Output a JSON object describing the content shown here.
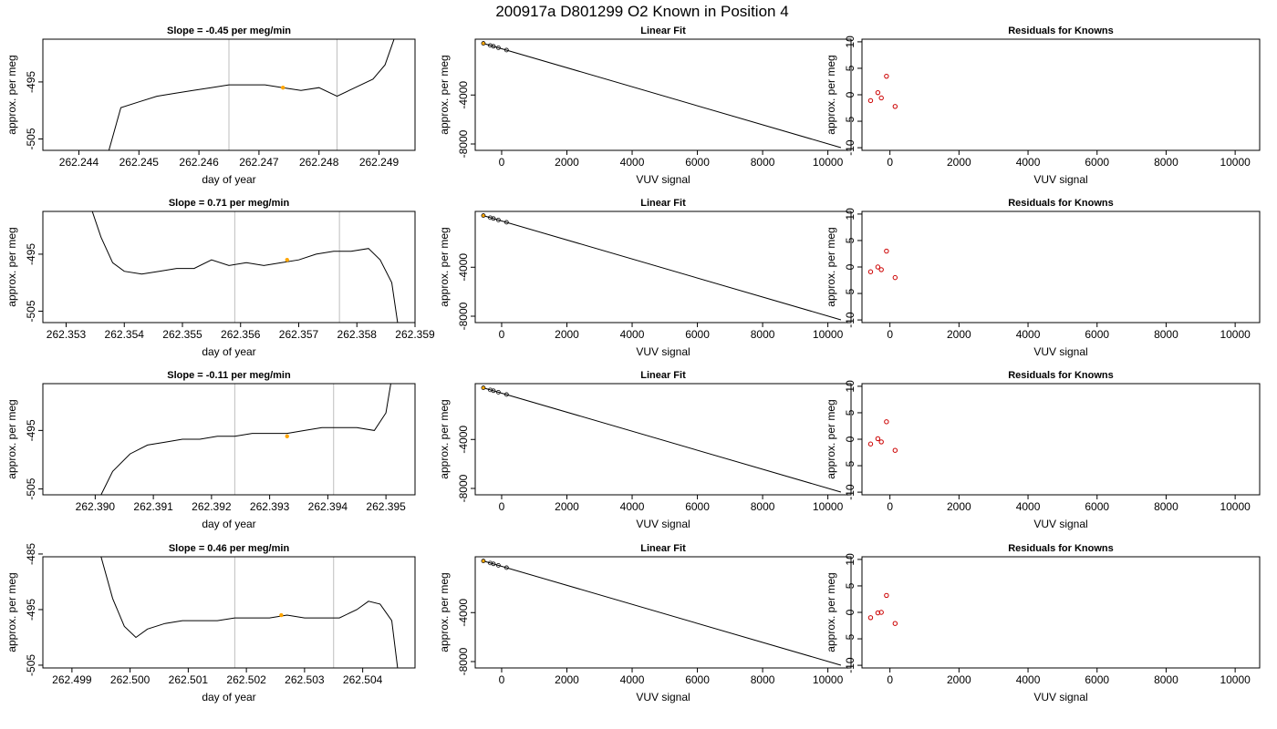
{
  "figure_title": "200917a     D801299   O2 Known in Position  4",
  "colors": {
    "trace": "#000000",
    "marker_orange": "#ffa500",
    "residual_red": "#cc0000",
    "vline_gray": "#bebebe"
  },
  "chart_data": [
    {
      "type": "line",
      "title": "Slope =  -0.45  per meg/min",
      "xlabel": "day of year",
      "ylabel": "approx. per meg",
      "xlim": [
        262.2434,
        262.2496
      ],
      "ylim": [
        -507,
        -487.5
      ],
      "xticks": [
        "262.244",
        "262.245",
        "262.246",
        "262.247",
        "262.248",
        "262.249"
      ],
      "yticks": [
        "-505",
        "-495"
      ],
      "vlines": [
        262.2465,
        262.2483
      ],
      "marker": {
        "x": 262.2474,
        "y": -496
      },
      "series": [
        {
          "x": [
            262.2445,
            262.2447,
            262.245,
            262.2453,
            262.2456,
            262.2459,
            262.2462,
            262.2465,
            262.2468,
            262.2471,
            262.2474,
            262.2477,
            262.248,
            262.2483,
            262.2486,
            262.2489,
            262.2491,
            262.2492,
            262.2493
          ],
          "values": [
            -507,
            -499.5,
            -498.5,
            -497.5,
            -497,
            -496.5,
            -496,
            -495.5,
            -495.5,
            -495.5,
            -496,
            -496.5,
            -496,
            -497.5,
            -496,
            -494.5,
            -492,
            -489,
            -486
          ]
        }
      ]
    },
    {
      "type": "line",
      "title": "Linear Fit",
      "xlabel": "VUV signal",
      "ylabel": "approx. per meg",
      "xlim": [
        -810,
        10710
      ],
      "ylim": [
        -8520,
        560
      ],
      "xticks": [
        "0",
        "2000",
        "4000",
        "6000",
        "8000",
        "10000"
      ],
      "yticks": [
        "-4000",
        "-8000"
      ],
      "series": [
        {
          "x": [
            -560,
            10400
          ],
          "values": [
            220,
            -8300
          ]
        }
      ],
      "points": {
        "x": [
          -560,
          -350,
          -250,
          -100,
          150
        ],
        "y": [
          220,
          50,
          -20,
          -140,
          -330
        ]
      }
    },
    {
      "type": "scatter",
      "title": "Residuals for Knowns",
      "xlabel": "VUV signal",
      "ylabel": "approx. per meg",
      "xlim": [
        -810,
        10710
      ],
      "ylim": [
        -10.5,
        10.5
      ],
      "xticks": [
        "0",
        "2000",
        "4000",
        "6000",
        "8000",
        "10000"
      ],
      "yticks": [
        "-10",
        "-5",
        "0",
        "5",
        "10"
      ],
      "points": {
        "x": [
          -560,
          -350,
          -250,
          -100,
          150
        ],
        "y": [
          -1.1,
          0.4,
          -0.6,
          3.5,
          -2.2
        ]
      }
    },
    {
      "type": "line",
      "title": "Slope =  0.71  per meg/min",
      "xlabel": "day of year",
      "ylabel": "approx. per meg",
      "xlim": [
        262.3526,
        262.359
      ],
      "ylim": [
        -507,
        -487.5
      ],
      "xticks": [
        "262.353",
        "262.354",
        "262.355",
        "262.356",
        "262.357",
        "262.358",
        "262.359"
      ],
      "yticks": [
        "-505",
        "-495"
      ],
      "vlines": [
        262.3559,
        262.3577
      ],
      "marker": {
        "x": 262.3568,
        "y": -496
      },
      "series": [
        {
          "x": [
            262.3534,
            262.3536,
            262.3538,
            262.354,
            262.3543,
            262.3546,
            262.3549,
            262.3552,
            262.3555,
            262.3558,
            262.3561,
            262.3564,
            262.3567,
            262.357,
            262.3573,
            262.3576,
            262.3579,
            262.3582,
            262.3584,
            262.3586,
            262.3587
          ],
          "values": [
            -486,
            -492,
            -496.5,
            -498,
            -498.5,
            -498,
            -497.5,
            -497.5,
            -496,
            -497,
            -496.5,
            -497,
            -496.5,
            -496,
            -495,
            -494.5,
            -494.5,
            -494,
            -496,
            -500,
            -507
          ]
        }
      ]
    },
    {
      "type": "line",
      "title": "Linear Fit",
      "xlabel": "VUV signal",
      "ylabel": "approx. per meg",
      "xlim": [
        -810,
        10710
      ],
      "ylim": [
        -8520,
        560
      ],
      "xticks": [
        "0",
        "2000",
        "4000",
        "6000",
        "8000",
        "10000"
      ],
      "yticks": [
        "-4000",
        "-8000"
      ],
      "series": [
        {
          "x": [
            -560,
            10400
          ],
          "values": [
            220,
            -8300
          ]
        }
      ],
      "points": {
        "x": [
          -560,
          -350,
          -250,
          -100,
          150
        ],
        "y": [
          220,
          50,
          -20,
          -140,
          -330
        ]
      }
    },
    {
      "type": "scatter",
      "title": "Residuals for Knowns",
      "xlabel": "VUV signal",
      "ylabel": "approx. per meg",
      "xlim": [
        -810,
        10710
      ],
      "ylim": [
        -10.5,
        10.5
      ],
      "xticks": [
        "0",
        "2000",
        "4000",
        "6000",
        "8000",
        "10000"
      ],
      "yticks": [
        "-10",
        "-5",
        "0",
        "5",
        "10"
      ],
      "points": {
        "x": [
          -560,
          -350,
          -250,
          -100,
          150
        ],
        "y": [
          -0.9,
          0.0,
          -0.5,
          3.0,
          -2.0
        ]
      }
    },
    {
      "type": "line",
      "title": "Slope =  -0.11  per meg/min",
      "xlabel": "day of year",
      "ylabel": "approx. per meg",
      "xlim": [
        262.3891,
        262.3955
      ],
      "ylim": [
        -506,
        -487
      ],
      "xticks": [
        "262.390",
        "262.391",
        "262.392",
        "262.393",
        "262.394",
        "262.395"
      ],
      "yticks": [
        "-505",
        "-495"
      ],
      "vlines": [
        262.3924,
        262.3941
      ],
      "marker": {
        "x": 262.3933,
        "y": -496
      },
      "series": [
        {
          "x": [
            262.3901,
            262.3903,
            262.3906,
            262.3909,
            262.3912,
            262.3915,
            262.3918,
            262.3921,
            262.3924,
            262.3927,
            262.393,
            262.3933,
            262.3936,
            262.3939,
            262.3942,
            262.3945,
            262.3948,
            262.395,
            262.3951
          ],
          "values": [
            -506,
            -502,
            -499,
            -497.5,
            -497,
            -496.5,
            -496.5,
            -496,
            -496,
            -495.5,
            -495.5,
            -495.5,
            -495,
            -494.5,
            -494.5,
            -494.5,
            -495,
            -492,
            -486
          ]
        }
      ]
    },
    {
      "type": "line",
      "title": "Linear Fit",
      "xlabel": "VUV signal",
      "ylabel": "approx. per meg",
      "xlim": [
        -810,
        10710
      ],
      "ylim": [
        -8520,
        560
      ],
      "xticks": [
        "0",
        "2000",
        "4000",
        "6000",
        "8000",
        "10000"
      ],
      "yticks": [
        "-4000",
        "-8000"
      ],
      "series": [
        {
          "x": [
            -560,
            10400
          ],
          "values": [
            220,
            -8300
          ]
        }
      ],
      "points": {
        "x": [
          -560,
          -350,
          -250,
          -100,
          150
        ],
        "y": [
          220,
          50,
          -20,
          -140,
          -330
        ]
      }
    },
    {
      "type": "scatter",
      "title": "Residuals for Knowns",
      "xlabel": "VUV signal",
      "ylabel": "approx. per meg",
      "xlim": [
        -810,
        10710
      ],
      "ylim": [
        -10.5,
        10.5
      ],
      "xticks": [
        "0",
        "2000",
        "4000",
        "6000",
        "8000",
        "10000"
      ],
      "yticks": [
        "-10",
        "-5",
        "0",
        "5",
        "10"
      ],
      "points": {
        "x": [
          -560,
          -350,
          -250,
          -100,
          150
        ],
        "y": [
          -0.9,
          0.1,
          -0.5,
          3.3,
          -2.1
        ]
      }
    },
    {
      "type": "line",
      "title": "Slope =  0.46  per meg/min",
      "xlabel": "day of year",
      "ylabel": "approx. per meg",
      "xlim": [
        262.4985,
        262.5049
      ],
      "ylim": [
        -505.5,
        -485.5
      ],
      "xticks": [
        "262.499",
        "262.500",
        "262.501",
        "262.502",
        "262.503",
        "262.504"
      ],
      "yticks": [
        "-505",
        "-495",
        "-485"
      ],
      "vlines": [
        262.5018,
        262.5035
      ],
      "marker": {
        "x": 262.5026,
        "y": -496
      },
      "series": [
        {
          "x": [
            262.4995,
            262.4997,
            262.4999,
            262.5001,
            262.5003,
            262.5006,
            262.5009,
            262.5012,
            262.5015,
            262.5018,
            262.5021,
            262.5024,
            262.5027,
            262.503,
            262.5033,
            262.5036,
            262.5039,
            262.5041,
            262.5043,
            262.5045,
            262.5046
          ],
          "values": [
            -485.5,
            -493,
            -498,
            -500,
            -498.5,
            -497.5,
            -497,
            -497,
            -497,
            -496.5,
            -496.5,
            -496.5,
            -496,
            -496.5,
            -496.5,
            -496.5,
            -495,
            -493.5,
            -494,
            -497,
            -505.5
          ]
        }
      ]
    },
    {
      "type": "line",
      "title": "Linear Fit",
      "xlabel": "VUV signal",
      "ylabel": "approx. per meg",
      "xlim": [
        -810,
        10710
      ],
      "ylim": [
        -8520,
        560
      ],
      "xticks": [
        "0",
        "2000",
        "4000",
        "6000",
        "8000",
        "10000"
      ],
      "yticks": [
        "-4000",
        "-8000"
      ],
      "series": [
        {
          "x": [
            -560,
            10400
          ],
          "values": [
            220,
            -8300
          ]
        }
      ],
      "points": {
        "x": [
          -560,
          -350,
          -250,
          -100,
          150
        ],
        "y": [
          220,
          50,
          -20,
          -140,
          -330
        ]
      }
    },
    {
      "type": "scatter",
      "title": "Residuals for Knowns",
      "xlabel": "VUV signal",
      "ylabel": "approx. per meg",
      "xlim": [
        -810,
        10710
      ],
      "ylim": [
        -10.5,
        10.5
      ],
      "xticks": [
        "0",
        "2000",
        "4000",
        "6000",
        "8000",
        "10000"
      ],
      "yticks": [
        "-10",
        "-5",
        "0",
        "5",
        "10"
      ],
      "points": {
        "x": [
          -560,
          -350,
          -250,
          -100,
          150
        ],
        "y": [
          -1.0,
          -0.1,
          0.0,
          3.2,
          -2.1
        ]
      }
    }
  ]
}
